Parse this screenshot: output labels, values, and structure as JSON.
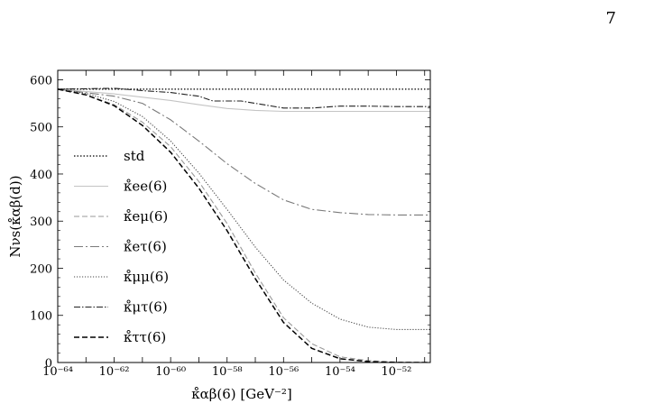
{
  "page_number": "7",
  "chart_data": {
    "type": "line",
    "title": "",
    "xlabel": "κ̊αβ(6) [GeV⁻²]",
    "ylabel": "Nνs(κ̊αβ(d))",
    "xscale": "log10",
    "xlim_exponent": [
      -64,
      -50.8
    ],
    "ylim": [
      0,
      620
    ],
    "x_ticks": [
      {
        "label": "10⁻⁶⁴",
        "exp": -64
      },
      {
        "label": "10⁻⁶²",
        "exp": -62
      },
      {
        "label": "10⁻⁶⁰",
        "exp": -60
      },
      {
        "label": "10⁻⁵⁸",
        "exp": -58
      },
      {
        "label": "10⁻⁵⁶",
        "exp": -56
      },
      {
        "label": "10⁻⁵⁴",
        "exp": -54
      },
      {
        "label": "10⁻⁵²",
        "exp": -52
      }
    ],
    "y_ticks": [
      0,
      100,
      200,
      300,
      400,
      500,
      600
    ],
    "legend_position": "left",
    "grid": false,
    "series": [
      {
        "name": "std",
        "color": "#000000",
        "dash": "1.5,2",
        "width": 1.3,
        "points": [
          [
            -64,
            580
          ],
          [
            -50.8,
            580
          ]
        ]
      },
      {
        "name": "κ̊ee(6)",
        "color": "#c4c4c4",
        "dash": "",
        "width": 1.1,
        "points": [
          [
            -64,
            580
          ],
          [
            -62,
            570
          ],
          [
            -60,
            556
          ],
          [
            -59,
            547
          ],
          [
            -58,
            539
          ],
          [
            -57,
            535
          ],
          [
            -56,
            533
          ],
          [
            -55,
            533
          ],
          [
            -54,
            533
          ],
          [
            -50.8,
            533
          ]
        ]
      },
      {
        "name": "κ̊eμ(6)",
        "color": "#9a9a9a",
        "dash": "6,3",
        "width": 1.1,
        "points": [
          [
            -64,
            580
          ],
          [
            -63,
            568
          ],
          [
            -62,
            547
          ],
          [
            -61,
            510
          ],
          [
            -60,
            458
          ],
          [
            -59,
            384
          ],
          [
            -58,
            295
          ],
          [
            -57,
            190
          ],
          [
            -56,
            95
          ],
          [
            -55,
            40
          ],
          [
            -54,
            12
          ],
          [
            -53,
            4
          ],
          [
            -52,
            1
          ],
          [
            -50.8,
            0
          ]
        ]
      },
      {
        "name": "κ̊eτ(6)",
        "color": "#7a7a7a",
        "dash": "10,3,2,3",
        "width": 1.1,
        "points": [
          [
            -64,
            580
          ],
          [
            -62,
            565
          ],
          [
            -61,
            550
          ],
          [
            -60,
            515
          ],
          [
            -59,
            470
          ],
          [
            -58,
            422
          ],
          [
            -57,
            380
          ],
          [
            -56,
            345
          ],
          [
            -55,
            325
          ],
          [
            -54,
            318
          ],
          [
            -53,
            314
          ],
          [
            -52,
            313
          ],
          [
            -50.8,
            313
          ]
        ]
      },
      {
        "name": "κ̊μμ(6)",
        "color": "#4a4a4a",
        "dash": "1.2,1.8",
        "width": 1.1,
        "points": [
          [
            -64,
            580
          ],
          [
            -63,
            571
          ],
          [
            -62,
            554
          ],
          [
            -61,
            522
          ],
          [
            -60,
            470
          ],
          [
            -59,
            402
          ],
          [
            -58,
            325
          ],
          [
            -57,
            245
          ],
          [
            -56,
            175
          ],
          [
            -55,
            126
          ],
          [
            -54,
            92
          ],
          [
            -53,
            75
          ],
          [
            -52,
            70
          ],
          [
            -50.8,
            70
          ]
        ]
      },
      {
        "name": "κ̊μτ(6)",
        "color": "#222222",
        "dash": "7,2,1.5,2",
        "width": 1.1,
        "points": [
          [
            -64,
            580
          ],
          [
            -62,
            582
          ],
          [
            -61,
            577
          ],
          [
            -60,
            573
          ],
          [
            -59.5,
            569
          ],
          [
            -59,
            565
          ],
          [
            -58.5,
            555
          ],
          [
            -57.5,
            555
          ],
          [
            -57,
            550
          ],
          [
            -56,
            540
          ],
          [
            -55,
            540
          ],
          [
            -54,
            544
          ],
          [
            -53,
            544
          ],
          [
            -52,
            543
          ],
          [
            -50.8,
            543
          ]
        ]
      },
      {
        "name": "κ̊ττ(6)",
        "color": "#000000",
        "dash": "6,3",
        "width": 1.5,
        "points": [
          [
            -64,
            580
          ],
          [
            -63,
            568
          ],
          [
            -62,
            545
          ],
          [
            -61,
            503
          ],
          [
            -60,
            446
          ],
          [
            -59,
            370
          ],
          [
            -58,
            280
          ],
          [
            -57,
            178
          ],
          [
            -56,
            85
          ],
          [
            -55,
            30
          ],
          [
            -54,
            8
          ],
          [
            -53,
            2
          ],
          [
            -52,
            0
          ],
          [
            -50.8,
            0
          ]
        ]
      }
    ]
  }
}
